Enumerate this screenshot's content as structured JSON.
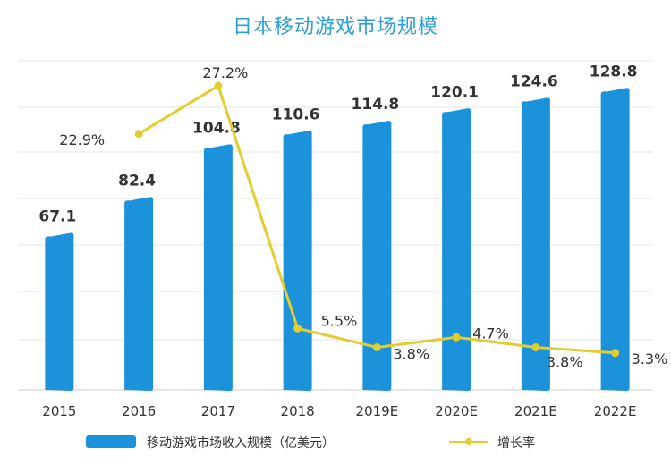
{
  "chart_data": {
    "type": "bar",
    "title": "日本移动游戏市场规模",
    "categories": [
      "2015",
      "2016",
      "2017",
      "2018",
      "2019E",
      "2020E",
      "2021E",
      "2022E"
    ],
    "series": [
      {
        "name": "移动游戏市场收入规模（亿美元）",
        "type": "bar",
        "values": [
          67.1,
          82.4,
          104.8,
          110.6,
          114.8,
          120.1,
          124.6,
          128.8
        ],
        "labels": [
          "67.1",
          "82.4",
          "104.8",
          "110.6",
          "114.8",
          "120.1",
          "124.6",
          "128.8"
        ],
        "color": "#1b92d9"
      },
      {
        "name": "增长率",
        "type": "line",
        "values": [
          null,
          22.9,
          27.2,
          5.5,
          3.8,
          4.7,
          3.8,
          3.3
        ],
        "labels": [
          "",
          "22.9%",
          "27.2%",
          "5.5%",
          "3.8%",
          "4.7%",
          "3.8%",
          "3.3%"
        ],
        "color": "#e3cc2c"
      }
    ],
    "bar_ylim": [
      0,
      140
    ],
    "line_ylim": [
      0,
      30
    ],
    "grid": true,
    "legend_position": "bottom"
  }
}
